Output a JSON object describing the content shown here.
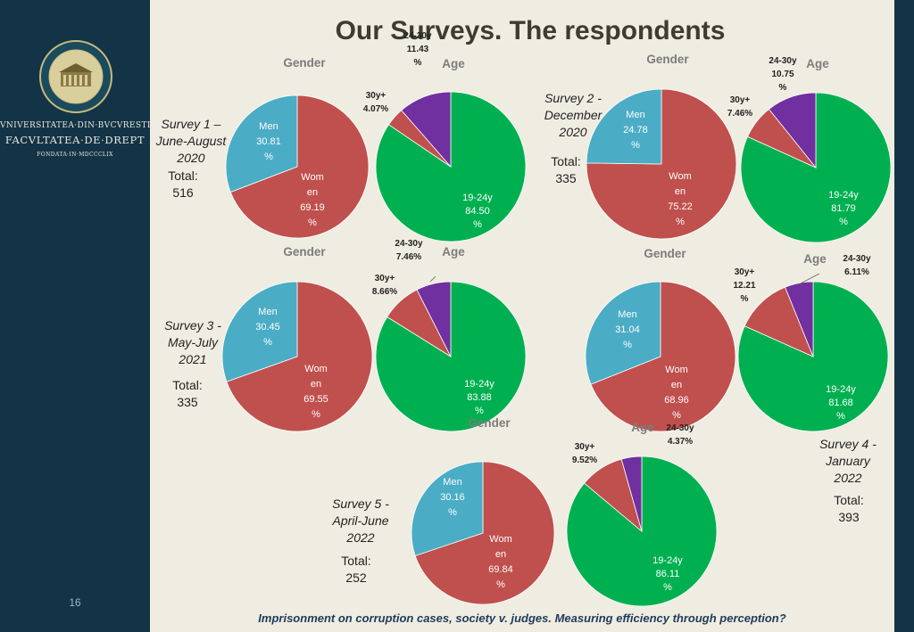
{
  "slide": {
    "title": "Our Surveys. The respondents",
    "footer": "Imprisonment on corruption cases, society v. judges. Measuring efficiency through perception?",
    "page_number": "16"
  },
  "sidebar": {
    "university": "VNIVERSITATEA·DIN·BVCVRESTI",
    "faculty": "FACVLTATEA·DE·DREPT",
    "founded": "FONDATA·IN·MDCCCLIX"
  },
  "colors": {
    "men": "#4bacc6",
    "women": "#c0504d",
    "age_19_24": "#00b050",
    "age_24_30": "#7030a0",
    "age_30_plus": "#c0504d",
    "slice_label": "#ffffff"
  },
  "chart_data": [
    {
      "type": "pie",
      "survey": "Survey 1 –",
      "period_line1": "June-August",
      "period_line2": "2020",
      "total_label": "Total:",
      "total": "516",
      "gender": {
        "title": "Gender",
        "slices": [
          {
            "label": "Men",
            "value": 30.81,
            "text": [
              "Men",
              "30.81",
              "%"
            ]
          },
          {
            "label": "Women",
            "value": 69.19,
            "text": [
              "Wom",
              "en",
              "69.19",
              "%"
            ]
          }
        ]
      },
      "age": {
        "title": "Age",
        "slices": [
          {
            "label": "19-24y",
            "value": 84.5,
            "text": [
              "19-24y",
              "84.50",
              "%"
            ]
          },
          {
            "label": "30y+",
            "value": 4.07,
            "text": [
              "30y+",
              "4.07%"
            ]
          },
          {
            "label": "24-30y",
            "value": 11.43,
            "text": [
              "24-30y",
              "11.43",
              "%"
            ]
          }
        ]
      }
    },
    {
      "type": "pie",
      "survey": "Survey 2  -",
      "period_line1": "December",
      "period_line2": "2020",
      "total_label": "Total:",
      "total": "335",
      "gender": {
        "title": "Gender",
        "slices": [
          {
            "label": "Men",
            "value": 24.78,
            "text": [
              "Men",
              "24.78",
              "%"
            ]
          },
          {
            "label": "Women",
            "value": 75.22,
            "text": [
              "Wom",
              "en",
              "75.22",
              "%"
            ]
          }
        ]
      },
      "age": {
        "title": "Age",
        "slices": [
          {
            "label": "19-24y",
            "value": 81.79,
            "text": [
              "19-24y",
              "81.79",
              "%"
            ]
          },
          {
            "label": "30y+",
            "value": 7.46,
            "text": [
              "30y+",
              "7.46%"
            ]
          },
          {
            "label": "24-30y",
            "value": 10.75,
            "text": [
              "24-30y",
              "10.75",
              "%"
            ]
          }
        ]
      }
    },
    {
      "type": "pie",
      "survey": "Survey 3  -",
      "period_line1": "May-July",
      "period_line2": "2021",
      "total_label": "Total:",
      "total": "335",
      "gender": {
        "title": "Gender",
        "slices": [
          {
            "label": "Men",
            "value": 30.45,
            "text": [
              "Men",
              "30.45",
              "%"
            ]
          },
          {
            "label": "Women",
            "value": 69.55,
            "text": [
              "Wom",
              "en",
              "69.55",
              "%"
            ]
          }
        ]
      },
      "age": {
        "title": "Age",
        "slices": [
          {
            "label": "19-24y",
            "value": 83.88,
            "text": [
              "19-24y",
              "83.88",
              "%"
            ]
          },
          {
            "label": "30y+",
            "value": 8.66,
            "text": [
              "30y+",
              "8.66%"
            ]
          },
          {
            "label": "24-30y",
            "value": 7.46,
            "text": [
              "24-30y",
              "7.46%"
            ]
          }
        ]
      }
    },
    {
      "type": "pie",
      "survey": "Survey 4  -",
      "period_line1": "January",
      "period_line2": "2022",
      "total_label": "Total:",
      "total": "393",
      "gender": {
        "title": "Gender",
        "slices": [
          {
            "label": "Men",
            "value": 31.04,
            "text": [
              "Men",
              "31.04",
              "%"
            ]
          },
          {
            "label": "Women",
            "value": 68.96,
            "text": [
              "Wom",
              "en",
              "68.96",
              "%"
            ]
          }
        ]
      },
      "age": {
        "title": "Age",
        "slices": [
          {
            "label": "19-24y",
            "value": 81.68,
            "text": [
              "19-24y",
              "81.68",
              "%"
            ]
          },
          {
            "label": "30y+",
            "value": 12.21,
            "text": [
              "30y+",
              "12.21",
              "%"
            ]
          },
          {
            "label": "24-30y",
            "value": 6.11,
            "text": [
              "24-30y",
              "6.11%"
            ]
          }
        ]
      }
    },
    {
      "type": "pie",
      "survey": "Survey 5  -",
      "period_line1": "April-June",
      "period_line2": "2022",
      "total_label": "Total:",
      "total": "252",
      "gender": {
        "title": "Gender",
        "slices": [
          {
            "label": "Men",
            "value": 30.16,
            "text": [
              "Men",
              "30.16",
              "%"
            ]
          },
          {
            "label": "Women",
            "value": 69.84,
            "text": [
              "Wom",
              "en",
              "69.84",
              "%"
            ]
          }
        ]
      },
      "age": {
        "title": "Age",
        "slices": [
          {
            "label": "19-24y",
            "value": 86.11,
            "text": [
              "19-24y",
              "86.11",
              "%"
            ]
          },
          {
            "label": "30y+",
            "value": 9.52,
            "text": [
              "30y+",
              "9.52%"
            ]
          },
          {
            "label": "24-30y",
            "value": 4.37,
            "text": [
              "24-30y",
              "4.37%"
            ]
          }
        ]
      }
    }
  ]
}
